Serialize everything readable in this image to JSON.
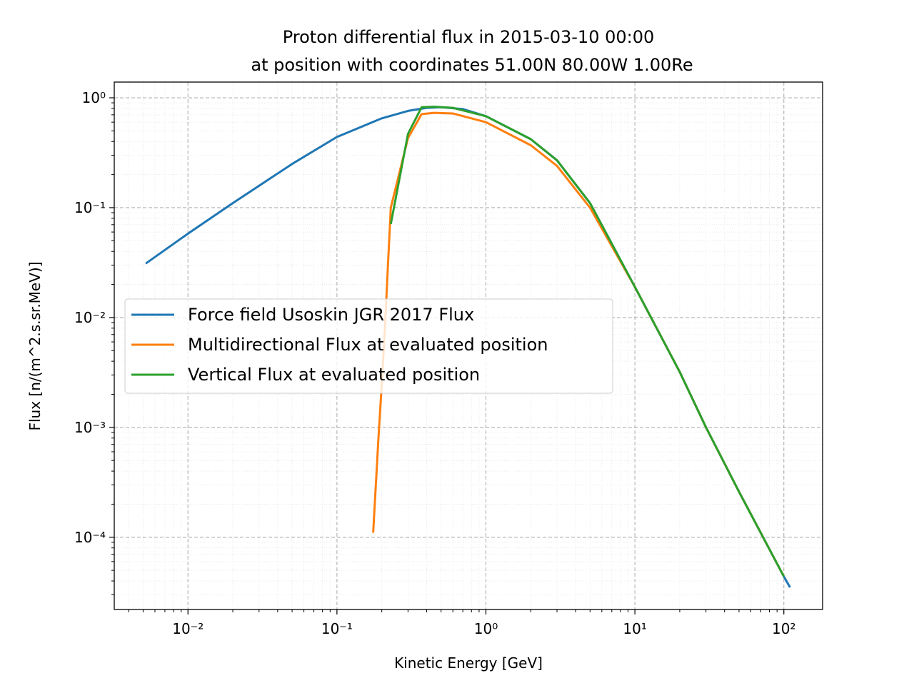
{
  "chart_data": {
    "type": "line",
    "title_lines": [
      "Proton differential flux in 2015-03-10 00:00",
      "at position with coordinates 51.00N 80.00W 1.00Re"
    ],
    "xlabel": "Kinetic Energy [GeV]",
    "ylabel": "Flux [n/(m^2.s.sr.MeV)]",
    "xscale": "log",
    "yscale": "log",
    "xlim": [
      0.0032,
      182
    ],
    "ylim": [
      2.2e-05,
      1.39
    ],
    "x_ticks": [
      {
        "value": 0.01,
        "label": "10⁻²"
      },
      {
        "value": 0.1,
        "label": "10⁻¹"
      },
      {
        "value": 1,
        "label": "10⁰"
      },
      {
        "value": 10,
        "label": "10¹"
      },
      {
        "value": 100,
        "label": "10²"
      }
    ],
    "y_ticks": [
      {
        "value": 1,
        "label": "10⁰"
      },
      {
        "value": 0.1,
        "label": "10⁻¹"
      },
      {
        "value": 0.01,
        "label": "10⁻²"
      },
      {
        "value": 0.001,
        "label": "10⁻³"
      },
      {
        "value": 0.0001,
        "label": "10⁻⁴"
      }
    ],
    "grid": {
      "major": "dashed",
      "minor": "dotted"
    },
    "legend_placement": "center-left",
    "series": [
      {
        "name": "Force field Usoskin JGR 2017 Flux",
        "color": "#1f77b4",
        "x": [
          0.0052,
          0.01,
          0.02,
          0.05,
          0.1,
          0.2,
          0.3,
          0.4,
          0.5,
          0.7,
          1,
          2,
          3,
          5,
          10,
          20,
          30,
          50,
          100,
          110
        ],
        "y": [
          0.031,
          0.058,
          0.11,
          0.25,
          0.44,
          0.65,
          0.76,
          0.81,
          0.82,
          0.79,
          0.68,
          0.42,
          0.27,
          0.11,
          0.019,
          0.0032,
          0.001,
          0.00026,
          4.4e-05,
          3.5e-05
        ]
      },
      {
        "name": "Multidirectional Flux at evaluated position",
        "color": "#ff7f0e",
        "x": [
          0.175,
          0.19,
          0.2,
          0.21,
          0.22,
          0.23,
          0.3,
          0.37,
          0.45,
          0.6,
          1,
          2,
          3,
          5,
          10,
          20,
          30,
          50,
          100
        ],
        "y": [
          0.00011,
          0.0008,
          0.0025,
          0.008,
          0.03,
          0.1,
          0.43,
          0.71,
          0.73,
          0.72,
          0.6,
          0.37,
          0.24,
          0.1,
          0.019,
          0.0032,
          0.001,
          0.00026,
          4.4e-05
        ]
      },
      {
        "name": "Vertical Flux at evaluated position",
        "color": "#2ca02c",
        "x": [
          0.23,
          0.3,
          0.37,
          0.45,
          0.6,
          1,
          2,
          3,
          5,
          10,
          20,
          30,
          50,
          100
        ],
        "y": [
          0.071,
          0.47,
          0.82,
          0.83,
          0.81,
          0.68,
          0.42,
          0.27,
          0.11,
          0.019,
          0.0032,
          0.001,
          0.00026,
          4.4e-05
        ]
      }
    ]
  }
}
